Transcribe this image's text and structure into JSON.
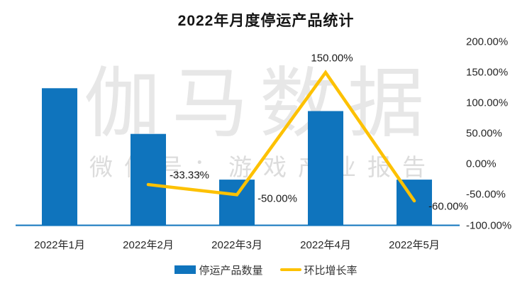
{
  "title": "2022年月度停运产品统计",
  "watermark": {
    "main": "伽马数据",
    "sub": "微信号：游戏产业报告"
  },
  "colors": {
    "bar": "#0f74bd",
    "line": "#fdc101",
    "axis": "#0f74bd",
    "label_text": "#1a1a1a",
    "watermark_main": "#e7e7e7",
    "watermark_sub": "#dcdcdc"
  },
  "chart_data": {
    "type": "bar",
    "title": "2022年月度停运产品统计",
    "categories": [
      "2022年1月",
      "2022年2月",
      "2022年3月",
      "2022年4月",
      "2022年5月"
    ],
    "series": [
      {
        "name": "停运产品数量",
        "type": "bar",
        "color": "#0f74bd",
        "values": [
          6,
          4,
          2,
          5,
          2
        ],
        "value_axis_visible": false
      },
      {
        "name": "环比增长率",
        "type": "line",
        "color": "#fdc101",
        "values": [
          null,
          -33.33,
          -50.0,
          150.0,
          -60.0
        ],
        "point_labels": [
          "",
          "-33.33%",
          "-50.00%",
          "150.00%",
          "-60.00%"
        ]
      }
    ],
    "right_axis": {
      "ticks": [
        "200.00%",
        "150.00%",
        "100.00%",
        "50.00%",
        "0.00%",
        "-50.00%",
        "-100.00%"
      ],
      "tick_values": [
        200,
        150,
        100,
        50,
        0,
        -50,
        -100
      ],
      "range": [
        -100,
        200
      ]
    },
    "grid": false,
    "legend_position": "bottom"
  }
}
